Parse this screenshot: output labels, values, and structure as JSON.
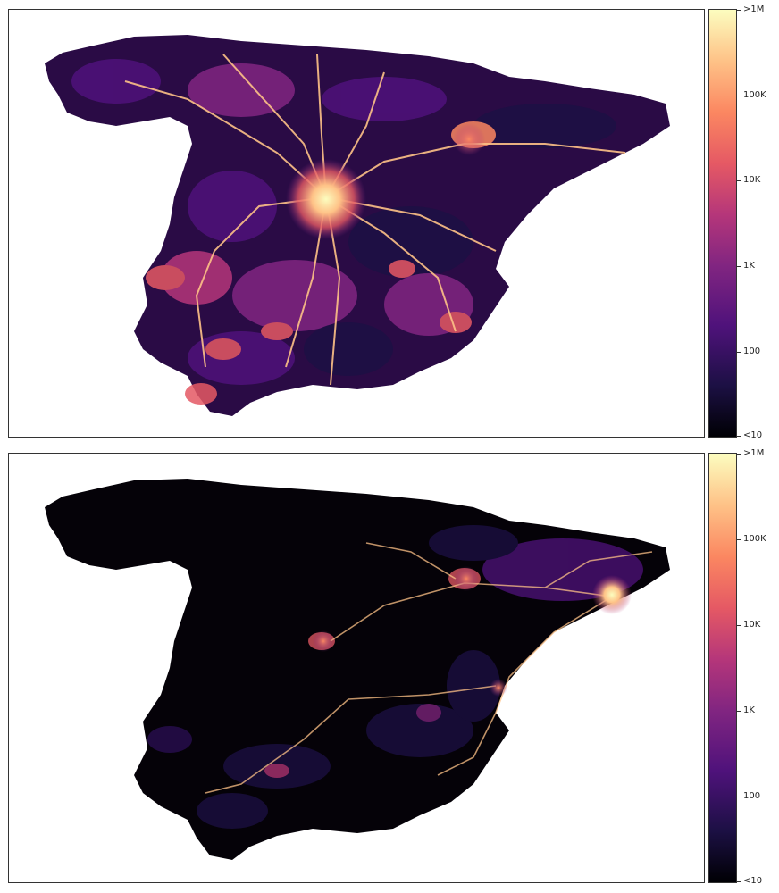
{
  "maps": [
    {
      "id": "top",
      "description_colors": {
        "base": "#2a0b45",
        "hot": "#fcfdbf",
        "mid": "#e55964"
      },
      "colorbar": {
        "labels": [
          ">1M",
          "100K",
          "10K",
          "1K",
          "100",
          "<10"
        ]
      }
    },
    {
      "id": "bottom",
      "description_colors": {
        "base": "#050208",
        "hot": "#fcfdbf",
        "mid": "#e55964"
      },
      "colorbar": {
        "labels": [
          ">1M",
          "100K",
          "10K",
          "1K",
          "100",
          "<10"
        ]
      }
    }
  ],
  "colormap": [
    "#000004",
    "#1c1044",
    "#4f127b",
    "#812581",
    "#b5367a",
    "#e55964",
    "#fb8761",
    "#fec287",
    "#fcfdbf"
  ]
}
